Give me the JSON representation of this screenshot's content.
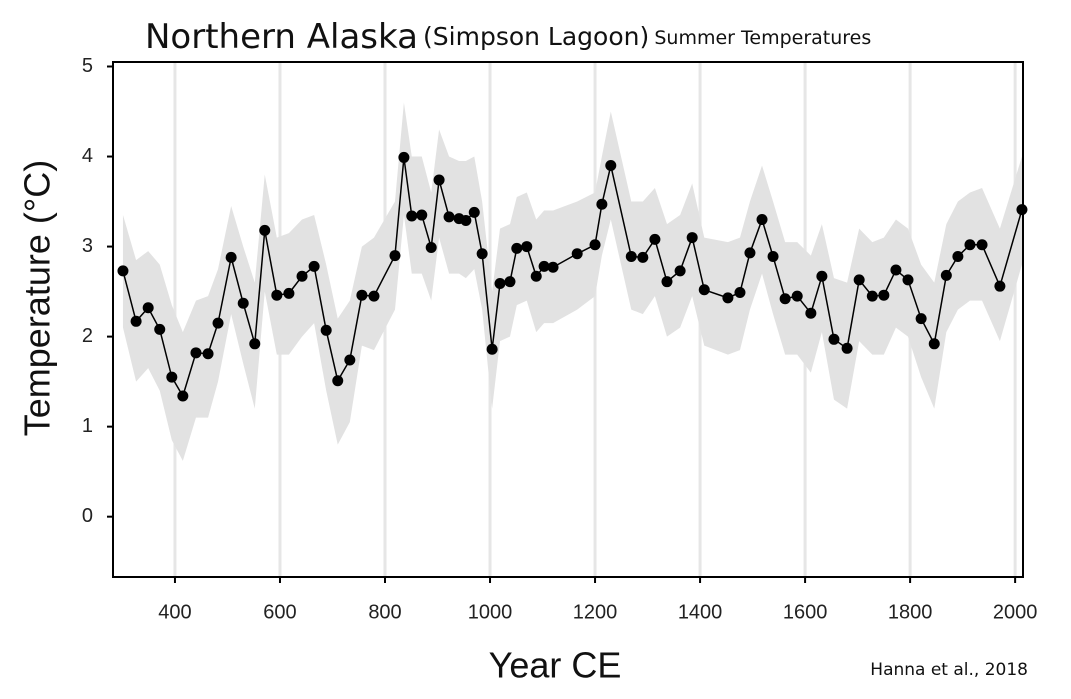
{
  "chart_data": {
    "type": "line",
    "title": {
      "main": "Northern Alaska",
      "sub": "(Simpson Lagoon)",
      "tail": "Summer Temperatures"
    },
    "xlabel": "Year CE",
    "ylabel": "Temperature (°C)",
    "annotation": "Hanna et al., 2018",
    "xlim": [
      282,
      2015
    ],
    "ylim": [
      -0.67,
      5.05
    ],
    "xticks": [
      400,
      600,
      800,
      1000,
      1200,
      1400,
      1600,
      1800,
      2000
    ],
    "yticks": [
      0,
      1,
      2,
      3,
      4,
      5
    ],
    "grid": "x",
    "color": "#000000",
    "band_color": "#e2e2e2",
    "x": [
      301,
      326,
      349,
      371,
      394,
      415,
      440,
      463,
      482,
      507,
      530,
      552,
      571,
      594,
      617,
      642,
      665,
      688,
      710,
      733,
      756,
      779,
      819,
      836,
      851,
      870,
      888,
      903,
      922,
      941,
      954,
      970,
      985,
      1004,
      1019,
      1038,
      1051,
      1070,
      1088,
      1103,
      1120,
      1166,
      1200,
      1213,
      1230,
      1269,
      1291,
      1314,
      1337,
      1362,
      1385,
      1408,
      1453,
      1476,
      1495,
      1518,
      1539,
      1562,
      1585,
      1611,
      1632,
      1655,
      1680,
      1703,
      1728,
      1750,
      1773,
      1796,
      1821,
      1846,
      1869,
      1891,
      1914,
      1937,
      1971,
      2013
    ],
    "values": [
      2.73,
      2.17,
      2.32,
      2.08,
      1.55,
      1.34,
      1.82,
      1.81,
      2.15,
      2.88,
      2.37,
      1.92,
      3.18,
      2.46,
      2.48,
      2.67,
      2.78,
      2.07,
      1.51,
      1.74,
      2.46,
      2.45,
      2.9,
      3.99,
      3.34,
      3.35,
      2.99,
      3.74,
      3.33,
      3.31,
      3.29,
      3.38,
      2.92,
      1.86,
      2.59,
      2.61,
      2.98,
      3.0,
      2.67,
      2.78,
      2.77,
      2.92,
      3.02,
      3.47,
      3.9,
      2.89,
      2.88,
      3.08,
      2.61,
      2.73,
      3.1,
      2.52,
      2.43,
      2.49,
      2.93,
      3.3,
      2.89,
      2.42,
      2.45,
      2.26,
      2.67,
      1.97,
      1.87,
      2.63,
      2.45,
      2.46,
      2.74,
      2.63,
      2.2,
      1.92,
      2.68,
      2.89,
      3.02,
      3.02,
      2.56,
      3.41
    ],
    "band": {
      "upper": [
        3.35,
        2.85,
        2.95,
        2.8,
        2.35,
        2.05,
        2.4,
        2.45,
        2.75,
        3.45,
        3.0,
        2.6,
        3.8,
        3.1,
        3.15,
        3.3,
        3.35,
        2.8,
        2.2,
        2.4,
        3.0,
        3.1,
        3.5,
        4.6,
        4.0,
        4.0,
        3.6,
        4.3,
        4.0,
        3.95,
        3.95,
        4.0,
        3.5,
        2.5,
        3.2,
        3.25,
        3.55,
        3.6,
        3.3,
        3.4,
        3.4,
        3.5,
        3.6,
        4.0,
        4.5,
        3.5,
        3.5,
        3.65,
        3.25,
        3.35,
        3.7,
        3.1,
        3.05,
        3.1,
        3.5,
        3.9,
        3.5,
        3.05,
        3.05,
        2.9,
        3.25,
        2.65,
        2.6,
        3.2,
        3.05,
        3.1,
        3.3,
        3.2,
        2.8,
        2.6,
        3.25,
        3.5,
        3.6,
        3.65,
        3.2,
        4.0
      ],
      "lower": [
        2.1,
        1.5,
        1.65,
        1.4,
        0.85,
        0.62,
        1.1,
        1.1,
        1.5,
        2.25,
        1.7,
        1.2,
        2.5,
        1.8,
        1.8,
        2.0,
        2.15,
        1.4,
        0.8,
        1.05,
        1.9,
        1.85,
        2.3,
        3.35,
        2.7,
        2.7,
        2.4,
        3.1,
        2.7,
        2.7,
        2.65,
        2.75,
        2.3,
        1.2,
        1.95,
        2.0,
        2.35,
        2.4,
        2.05,
        2.15,
        2.15,
        2.3,
        2.45,
        2.9,
        3.3,
        2.3,
        2.25,
        2.45,
        2.0,
        2.1,
        2.45,
        1.9,
        1.8,
        1.85,
        2.3,
        2.7,
        2.25,
        1.8,
        1.8,
        1.6,
        2.05,
        1.3,
        1.2,
        1.95,
        1.8,
        1.8,
        2.1,
        2.0,
        1.55,
        1.2,
        2.05,
        2.3,
        2.4,
        2.4,
        1.95,
        2.8
      ]
    }
  }
}
